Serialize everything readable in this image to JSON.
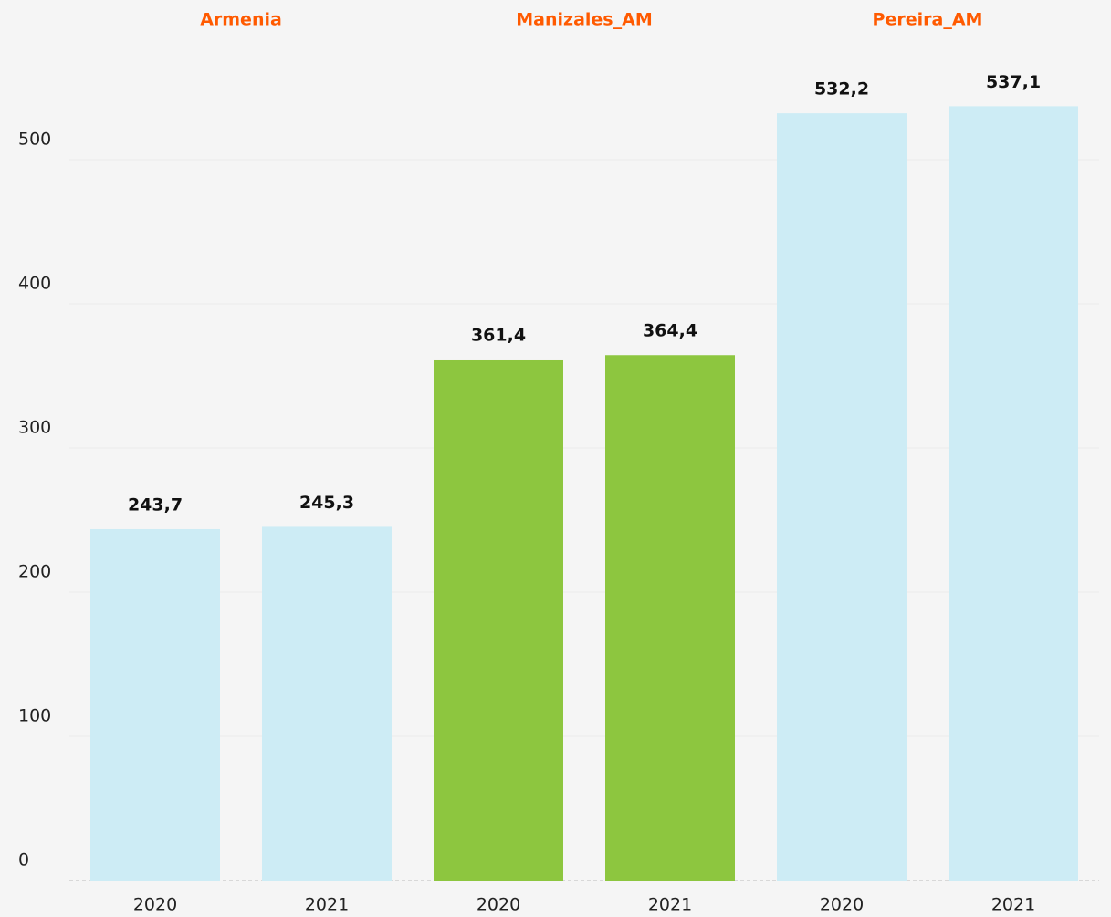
{
  "chart_data": {
    "type": "bar",
    "series": [
      {
        "name": "Armenia",
        "color": "#cdecf5",
        "categories": [
          "2020",
          "2021"
        ],
        "values": [
          243.7,
          245.3
        ],
        "value_labels": [
          "243,7",
          "245,3"
        ]
      },
      {
        "name": "Manizales_AM",
        "color": "#8dc63f",
        "categories": [
          "2020",
          "2021"
        ],
        "values": [
          361.4,
          364.4
        ],
        "value_labels": [
          "361,4",
          "364,4"
        ]
      },
      {
        "name": "Pereira_AM",
        "color": "#cdecf5",
        "categories": [
          "2020",
          "2021"
        ],
        "values": [
          532.2,
          537.1
        ],
        "value_labels": [
          "532,2",
          "537,1"
        ]
      }
    ],
    "ylim": [
      0,
      600
    ],
    "yticks": [
      0,
      100,
      200,
      300,
      400,
      500
    ],
    "grid": true
  }
}
